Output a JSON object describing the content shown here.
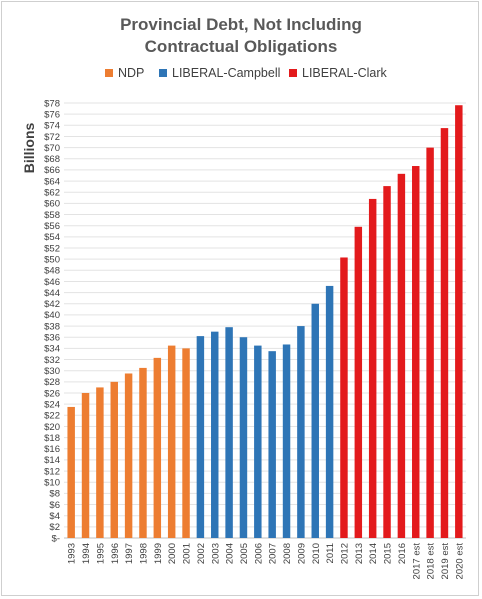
{
  "chart_data": {
    "type": "bar",
    "title_line1": "Provincial Debt, Not Including",
    "title_line2": "Contractual Obligations",
    "ylabel": "Billions",
    "xlabel": "",
    "ylim": [
      0,
      78
    ],
    "ytick_step": 2,
    "ytick_labels": [
      "$-",
      "$2",
      "$4",
      "$6",
      "$8",
      "$10",
      "$12",
      "$14",
      "$16",
      "$18",
      "$20",
      "$22",
      "$24",
      "$26",
      "$28",
      "$30",
      "$32",
      "$34",
      "$36",
      "$38",
      "$40",
      "$42",
      "$44",
      "$46",
      "$48",
      "$50",
      "$52",
      "$54",
      "$56",
      "$58",
      "$60",
      "$62",
      "$64",
      "$66",
      "$68",
      "$70",
      "$72",
      "$74",
      "$76",
      "$78"
    ],
    "grid": "horizontal",
    "legend_position": "top",
    "categories": [
      "1993",
      "1994",
      "1995",
      "1996",
      "1997",
      "1998",
      "1999",
      "2000",
      "2001",
      "2002",
      "2003",
      "2004",
      "2005",
      "2006",
      "2007",
      "2008",
      "2009",
      "2010",
      "2011",
      "2012",
      "2013",
      "2014",
      "2015",
      "2016",
      "2017 est",
      "2018 est",
      "2019 est",
      "2020 est"
    ],
    "series": [
      {
        "name": "NDP",
        "color": "#ED7D31",
        "values": [
          23.5,
          26,
          27,
          28,
          29.5,
          30.5,
          32.3,
          34.5,
          34,
          null,
          null,
          null,
          null,
          null,
          null,
          null,
          null,
          null,
          null,
          null,
          null,
          null,
          null,
          null,
          null,
          null,
          null,
          null
        ]
      },
      {
        "name": "LIBERAL-Campbell",
        "color": "#2E75B6",
        "values": [
          null,
          null,
          null,
          null,
          null,
          null,
          null,
          null,
          null,
          36.2,
          37,
          37.8,
          36,
          34.5,
          33.5,
          34.7,
          38,
          42,
          45.2,
          null,
          null,
          null,
          null,
          null,
          null,
          null,
          null,
          null
        ]
      },
      {
        "name": "LIBERAL-Clark",
        "color": "#E31A1C",
        "values": [
          null,
          null,
          null,
          null,
          null,
          null,
          null,
          null,
          null,
          null,
          null,
          null,
          null,
          null,
          null,
          null,
          null,
          null,
          null,
          50.3,
          55.8,
          60.8,
          63.1,
          65.3,
          66.7,
          70,
          73.5,
          77.6
        ]
      }
    ]
  }
}
